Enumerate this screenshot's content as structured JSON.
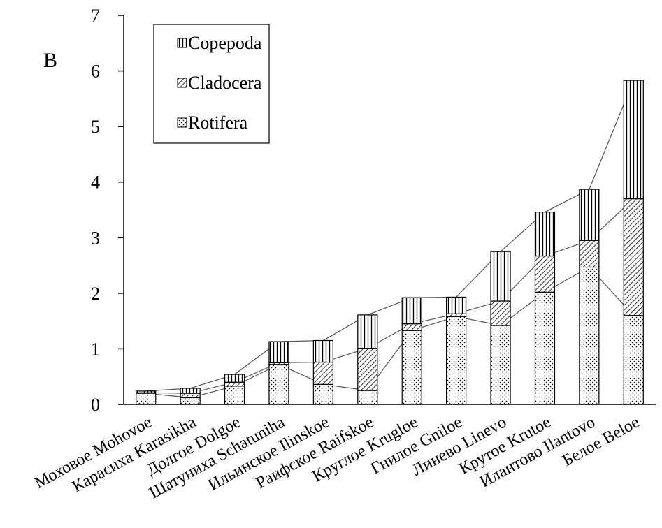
{
  "panel_label": "B",
  "chart_data": {
    "type": "bar",
    "stacked": true,
    "categories": [
      "Моховое Mohovoe",
      "Карасиха Karasikha",
      "Долгое Dolgoe",
      "Шатуниха Schatuniha",
      "Ильинское Ilinskoe",
      "Раифское Raifskoe",
      "Круглое Krugloe",
      "Гнилое Gniloe",
      "Линево Linevo",
      "Крутое Krutoe",
      "Илантово Ilantovo",
      "Белое Beloe"
    ],
    "series": [
      {
        "name": "Rotifera",
        "pattern": "dots",
        "values": [
          0.2,
          0.12,
          0.33,
          0.72,
          0.36,
          0.25,
          1.33,
          1.58,
          1.42,
          2.02,
          2.47,
          1.6
        ]
      },
      {
        "name": "Cladocera",
        "pattern": "diagonal",
        "values": [
          0.01,
          0.08,
          0.07,
          0.03,
          0.4,
          0.76,
          0.12,
          0.05,
          0.44,
          0.65,
          0.48,
          2.1
        ]
      },
      {
        "name": "Copepoda",
        "pattern": "vertical",
        "values": [
          0.03,
          0.09,
          0.14,
          0.38,
          0.39,
          0.6,
          0.47,
          0.3,
          0.89,
          0.79,
          0.92,
          2.13
        ]
      }
    ],
    "legend": {
      "position": "top-left",
      "order": [
        "Copepoda",
        "Cladocera",
        "Rotifera"
      ]
    },
    "ylim": [
      0,
      7
    ],
    "yticks": [
      0,
      1,
      2,
      3,
      4,
      5,
      6,
      7
    ],
    "grid": false,
    "connector_lines": true
  }
}
